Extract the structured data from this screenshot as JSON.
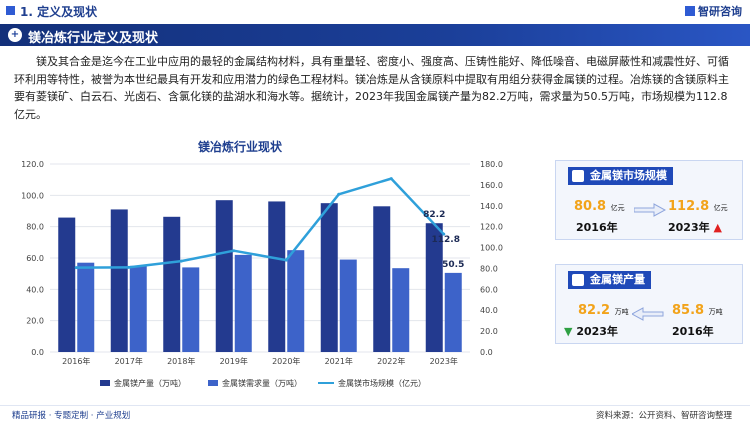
{
  "header": {
    "section_title": "1. 定义及现状",
    "logo_text": "智研咨询"
  },
  "banner": {
    "title": "镁冶炼行业定义及现状"
  },
  "intro": {
    "text": "镁及其合金是迄今在工业中应用的最轻的金属结构材料，具有重量轻、密度小、强度高、压铸性能好、降低噪音、电磁屏蔽性和减震性好、可循环利用等特性，被誉为本世纪最具有开发和应用潜力的绿色工程材料。镁冶炼是从含镁原料中提取有用组分获得金属镁的过程。冶炼镁的含镁原料主要有菱镁矿、白云石、光卤石、含氯化镁的盐湖水和海水等。据统计，2023年我国金属镁产量为82.2万吨，需求量为50.5万吨，市场规模为112.8亿元。"
  },
  "chart_data": {
    "type": "bar",
    "title": "镁冶炼行业现状",
    "categories": [
      "2016年",
      "2017年",
      "2018年",
      "2019年",
      "2020年",
      "2021年",
      "2022年",
      "2023年"
    ],
    "series": [
      {
        "name": "金属镁产量（万吨）",
        "type": "bar",
        "axis": "left",
        "color": "#233a8f",
        "values": [
          85.8,
          91.0,
          86.3,
          96.9,
          96.1,
          95.0,
          93.0,
          82.2
        ]
      },
      {
        "name": "金属镁需求量（万吨）",
        "type": "bar",
        "axis": "left",
        "color": "#3d63c9",
        "values": [
          57.0,
          55.0,
          54.0,
          62.0,
          65.0,
          59.0,
          53.5,
          50.5
        ]
      },
      {
        "name": "金属镁市场规模（亿元）",
        "type": "line",
        "axis": "right",
        "color": "#2fa0da",
        "values": [
          80.8,
          81.0,
          87.0,
          97.0,
          88.0,
          151.0,
          166.0,
          112.8
        ]
      }
    ],
    "y_left": {
      "min": 0,
      "max": 120,
      "ticks": [
        "0.0",
        "20.0",
        "40.0",
        "60.0",
        "80.0",
        "100.0",
        "120.0"
      ]
    },
    "y_right": {
      "min": 0,
      "max": 180,
      "ticks": [
        "0.0",
        "20.0",
        "40.0",
        "60.0",
        "80.0",
        "100.0",
        "120.0",
        "140.0",
        "160.0",
        "180.0"
      ]
    },
    "data_labels": {
      "prod_2023": "82.2",
      "demand_2023": "50.5",
      "market_2023": "112.8"
    },
    "grid": true,
    "legend_position": "bottom"
  },
  "cards": {
    "market": {
      "title": "金属镁市场规模",
      "left_value": "80.8",
      "left_unit": "亿元",
      "left_year": "2016年",
      "right_value": "112.8",
      "right_unit": "亿元",
      "right_year": "2023年",
      "accent": "#f2a31a",
      "trend_color": "#e02020"
    },
    "output": {
      "title": "金属镁产量",
      "left_value": "82.2",
      "left_unit": "万吨",
      "left_year": "2023年",
      "right_value": "85.8",
      "right_unit": "万吨",
      "right_year": "2016年",
      "accent": "#f2a31a",
      "trend_color": "#2ea043"
    }
  },
  "footer": {
    "left": "精品研报 · 专题定制 · 产业规划",
    "right": "资料来源：公开资料、智研咨询整理"
  }
}
